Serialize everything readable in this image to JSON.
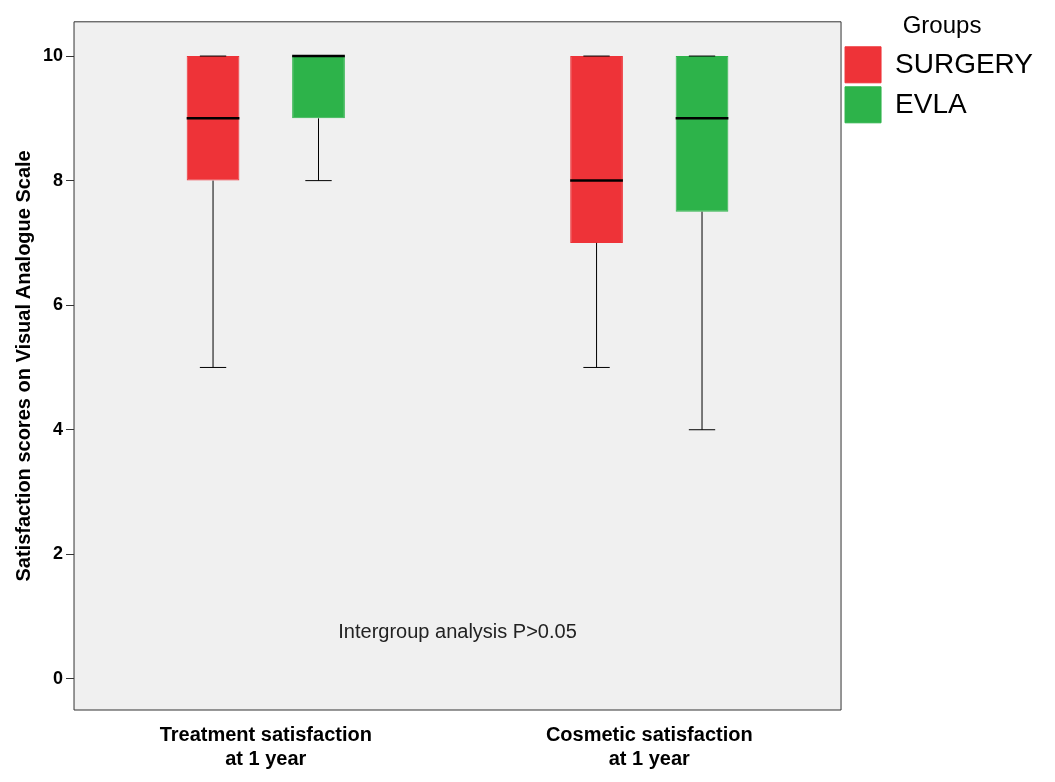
{
  "chart_data": {
    "type": "box",
    "ylabel": "Satisfaction scores on Visual Analogue Scale",
    "legend_title": "Groups",
    "categories": [
      "Treatment satisfaction at 1 year",
      "Cosmetic satisfaction at 1 year"
    ],
    "series": [
      {
        "name": "SURGERY",
        "color": "#ee3338",
        "boxes": [
          {
            "low": 5,
            "q1": 8,
            "median": 9,
            "q3": 10,
            "high": 10
          },
          {
            "low": 5,
            "q1": 7,
            "median": 8,
            "q3": 10,
            "high": 10
          }
        ]
      },
      {
        "name": "EVLA",
        "color": "#2db34a",
        "boxes": [
          {
            "low": 8,
            "q1": 9,
            "median": 10,
            "q3": 10,
            "high": 10
          },
          {
            "low": 4,
            "q1": 7.5,
            "median": 9,
            "q3": 10,
            "high": 10
          }
        ]
      }
    ],
    "ylim": [
      -0.5,
      10.55
    ],
    "yticks": [
      0,
      2,
      4,
      6,
      8,
      10
    ],
    "grid": false,
    "legend": "top right",
    "annotations": [
      "Intergroup analysis P>0.05"
    ]
  }
}
